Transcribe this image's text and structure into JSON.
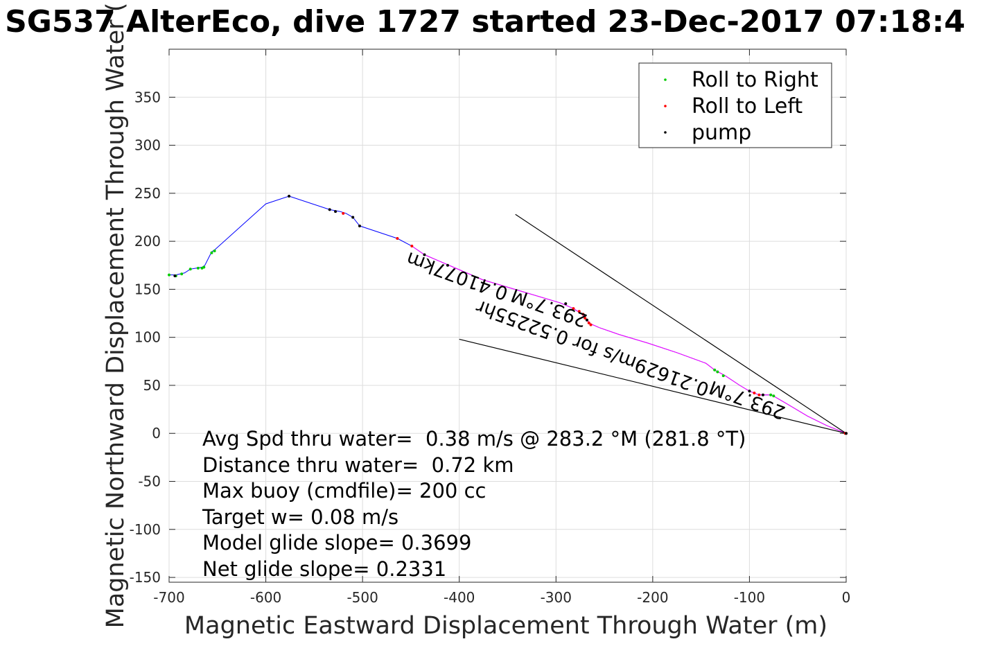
{
  "chart_data": {
    "type": "line",
    "title": "SG537 AlterEco, dive 1727 started 23-Dec-2017 07:18:4",
    "xlabel": "Magnetic Eastward Displacement Through Water (m)",
    "ylabel": "Magnetic Northward Displacement Through Water (",
    "xlim": [
      -700,
      0
    ],
    "ylim": [
      -155,
      400
    ],
    "x_ticks": [
      -700,
      -600,
      -500,
      -400,
      -300,
      -200,
      -100,
      0
    ],
    "y_ticks": [
      -150,
      -100,
      -50,
      0,
      50,
      100,
      150,
      200,
      250,
      300,
      350
    ],
    "grid": true,
    "legend_placement": "top-right",
    "legend": [
      {
        "label": "Roll to Right",
        "color": "#00cc00"
      },
      {
        "label": "Roll to Left",
        "color": "#ff0000"
      },
      {
        "label": "pump",
        "color": "#000000"
      }
    ],
    "series": [
      {
        "kind": "track",
        "color": "#0000ff",
        "points": [
          [
            -700,
            165
          ],
          [
            -693,
            165
          ],
          [
            -684,
            167
          ],
          [
            -678,
            171
          ],
          [
            -672,
            172
          ],
          [
            -666,
            173
          ],
          [
            -663,
            175
          ],
          [
            -656,
            189
          ],
          [
            -653,
            191
          ],
          [
            -600,
            239
          ],
          [
            -576,
            247
          ],
          [
            -573,
            246
          ],
          [
            -534,
            233
          ],
          [
            -523,
            231
          ],
          [
            -517,
            229
          ],
          [
            -510,
            225
          ],
          [
            -503,
            216
          ],
          [
            -464,
            203
          ],
          [
            -449,
            195
          ],
          [
            -436,
            186
          ],
          [
            -406,
            173
          ],
          [
            -376,
            160
          ],
          [
            -346,
            151
          ],
          [
            -316,
            142
          ],
          [
            -296,
            136
          ],
          [
            -282,
            130
          ],
          [
            -273,
            124
          ],
          [
            -268,
            118
          ],
          [
            -264,
            114
          ],
          [
            -255,
            110
          ],
          [
            -235,
            103
          ],
          [
            -205,
            94
          ],
          [
            -175,
            84
          ],
          [
            -145,
            73
          ],
          [
            -136,
            66
          ],
          [
            -125,
            60
          ],
          [
            -110,
            50
          ],
          [
            -100,
            44
          ],
          [
            -90,
            40
          ],
          [
            -77,
            40
          ],
          [
            -60,
            30
          ],
          [
            -40,
            18
          ],
          [
            -20,
            8
          ],
          [
            0,
            0
          ]
        ]
      },
      {
        "kind": "track",
        "color": "#ff00ff",
        "points": [
          [
            -449,
            195
          ],
          [
            -436,
            186
          ],
          [
            -406,
            173
          ],
          [
            -376,
            160
          ],
          [
            -346,
            151
          ],
          [
            -316,
            142
          ],
          [
            -296,
            136
          ],
          [
            -282,
            130
          ],
          [
            -273,
            124
          ],
          [
            -268,
            118
          ],
          [
            -264,
            114
          ],
          [
            -255,
            110
          ],
          [
            -235,
            103
          ],
          [
            -205,
            94
          ],
          [
            -175,
            84
          ],
          [
            -145,
            73
          ],
          [
            -136,
            66
          ],
          [
            -125,
            60
          ],
          [
            -110,
            50
          ],
          [
            -100,
            44
          ],
          [
            -90,
            40
          ],
          [
            -77,
            40
          ],
          [
            -60,
            30
          ],
          [
            -40,
            18
          ],
          [
            -20,
            8
          ],
          [
            0,
            0
          ]
        ]
      },
      {
        "kind": "reference-line",
        "color": "#000000",
        "points": [
          [
            -342,
            228
          ],
          [
            0,
            0
          ]
        ]
      },
      {
        "kind": "reference-line",
        "color": "#000000",
        "points": [
          [
            -400,
            98
          ],
          [
            0,
            0
          ]
        ]
      },
      {
        "kind": "markers",
        "name": "Roll to Right",
        "color": "#00cc00",
        "points": [
          [
            -700,
            165
          ],
          [
            -693,
            164
          ],
          [
            -687,
            166
          ],
          [
            -678,
            171
          ],
          [
            -670,
            172
          ],
          [
            -666,
            172
          ],
          [
            -664,
            173
          ],
          [
            -656,
            188
          ],
          [
            -653,
            190
          ],
          [
            -136,
            66
          ],
          [
            -133,
            64
          ],
          [
            -127,
            60
          ],
          [
            -78,
            40
          ],
          [
            -75,
            39
          ]
        ]
      },
      {
        "kind": "markers",
        "name": "Roll to Left",
        "color": "#ff0000",
        "points": [
          [
            -464,
            203
          ],
          [
            -449,
            195
          ],
          [
            -520,
            229
          ],
          [
            -282,
            130
          ],
          [
            -276,
            127
          ],
          [
            -272,
            124
          ],
          [
            -270,
            120
          ],
          [
            -268,
            118
          ],
          [
            -266,
            115
          ],
          [
            -264,
            113
          ],
          [
            -95,
            42
          ],
          [
            -90,
            40
          ],
          [
            -1,
            0
          ],
          [
            0,
            0
          ]
        ]
      },
      {
        "kind": "markers",
        "name": "pump",
        "color": "#000000",
        "points": [
          [
            -694,
            164
          ],
          [
            -576,
            247
          ],
          [
            -534,
            233
          ],
          [
            -528,
            231
          ],
          [
            -510,
            225
          ],
          [
            -503,
            216
          ],
          [
            -436,
            186
          ],
          [
            -412,
            175
          ],
          [
            -290,
            135
          ],
          [
            -268,
            118
          ],
          [
            -100,
            44
          ],
          [
            -86,
            40
          ],
          [
            0,
            0
          ]
        ]
      }
    ],
    "annotations": [
      {
        "text": "0.41077km",
        "x": -400,
        "y": 170,
        "rotation": 200
      },
      {
        "text": "293.7°M",
        "x": -305,
        "y": 137,
        "rotation": 200
      },
      {
        "text": "0.21629m/s for 0.52255hr",
        "x": -260,
        "y": 95,
        "rotation": 200
      },
      {
        "text": "293.7°M",
        "x": -100,
        "y": 41,
        "rotation": 200
      }
    ],
    "summary_lines": [
      "Avg Spd thru water=  0.38 m/s @ 283.2 °M (281.8 °T)",
      "Distance thru water=  0.72 km",
      "Max buoy (cmdfile)= 200 cc",
      "Target w= 0.08 m/s",
      "Model glide slope= 0.3699",
      "Net glide slope= 0.2331"
    ]
  }
}
